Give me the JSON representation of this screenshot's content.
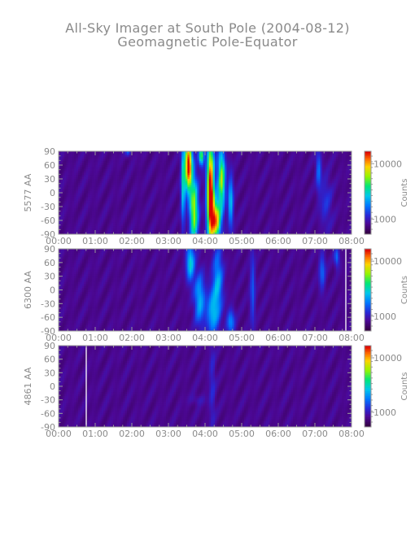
{
  "title": "All-Sky Imager at South Pole (2004-08-12)",
  "subtitle": "Geomagnetic Pole-Equator",
  "chart_data": [
    {
      "type": "heatmap",
      "ylabel": "5577 AA",
      "colorbar_label": "Counts",
      "colorbar_ticks": [
        "10000",
        "1000"
      ],
      "x_ticks": [
        "00:00",
        "01:00",
        "02:00",
        "03:00",
        "04:00",
        "05:00",
        "06:00",
        "07:00",
        "08:00"
      ],
      "y_ticks": [
        "90",
        "60",
        "30",
        "0",
        "-30",
        "-60",
        "-90"
      ],
      "xlim_hours": [
        0,
        8
      ],
      "ylim": [
        -90,
        90
      ],
      "blobs": [
        {
          "t": 3.55,
          "lat": 60,
          "wt": 0.07,
          "wl": 40,
          "amp": 0.92
        },
        {
          "t": 3.7,
          "lat": -40,
          "wt": 0.08,
          "wl": 50,
          "amp": 0.62
        },
        {
          "t": 4.15,
          "lat": 0,
          "wt": 0.07,
          "wl": 80,
          "amp": 0.97
        },
        {
          "t": 4.3,
          "lat": -60,
          "wt": 0.09,
          "wl": 30,
          "amp": 0.72
        },
        {
          "t": 4.45,
          "lat": 30,
          "wt": 0.07,
          "wl": 45,
          "amp": 0.62
        },
        {
          "t": 3.9,
          "lat": 80,
          "wt": 0.05,
          "wl": 15,
          "amp": 0.55
        },
        {
          "t": 4.7,
          "lat": -20,
          "wt": 0.05,
          "wl": 40,
          "amp": 0.35
        },
        {
          "t": 3.4,
          "lat": 20,
          "wt": 0.04,
          "wl": 60,
          "amp": 0.4
        },
        {
          "t": 7.1,
          "lat": 50,
          "wt": 0.05,
          "wl": 30,
          "amp": 0.22
        },
        {
          "t": 7.3,
          "lat": -20,
          "wt": 0.12,
          "wl": 40,
          "amp": 0.12
        },
        {
          "t": 1.9,
          "lat": 90,
          "wt": 0.05,
          "wl": 8,
          "amp": 0.2
        }
      ]
    },
    {
      "type": "heatmap",
      "ylabel": "6300 AA",
      "colorbar_label": "Counts",
      "colorbar_ticks": [
        "10000",
        "1000"
      ],
      "x_ticks": [
        "00:00",
        "01:00",
        "02:00",
        "03:00",
        "04:00",
        "05:00",
        "06:00",
        "07:00",
        "08:00"
      ],
      "y_ticks": [
        "90",
        "60",
        "30",
        "0",
        "-30",
        "-60",
        "-90"
      ],
      "xlim_hours": [
        0,
        8
      ],
      "ylim": [
        -90,
        90
      ],
      "blobs": [
        {
          "t": 3.6,
          "lat": 60,
          "wt": 0.08,
          "wl": 30,
          "amp": 0.38
        },
        {
          "t": 3.85,
          "lat": -20,
          "wt": 0.1,
          "wl": 40,
          "amp": 0.32
        },
        {
          "t": 4.2,
          "lat": -50,
          "wt": 0.12,
          "wl": 35,
          "amp": 0.3
        },
        {
          "t": 4.35,
          "lat": 20,
          "wt": 0.1,
          "wl": 50,
          "amp": 0.3
        },
        {
          "t": 4.7,
          "lat": -70,
          "wt": 0.08,
          "wl": 20,
          "amp": 0.25
        },
        {
          "t": 5.3,
          "lat": 0,
          "wt": 0.05,
          "wl": 60,
          "amp": 0.18
        },
        {
          "t": 7.2,
          "lat": 40,
          "wt": 0.06,
          "wl": 30,
          "amp": 0.2
        },
        {
          "t": 7.6,
          "lat": 70,
          "wt": 0.05,
          "wl": 15,
          "amp": 0.22
        }
      ]
    },
    {
      "type": "heatmap",
      "ylabel": "4861 AA",
      "colorbar_label": "Counts",
      "colorbar_ticks": [
        "10000",
        "1000"
      ],
      "x_ticks": [
        "00:00",
        "01:00",
        "02:00",
        "03:00",
        "04:00",
        "05:00",
        "06:00",
        "07:00",
        "08:00"
      ],
      "y_ticks": [
        "90",
        "60",
        "30",
        "0",
        "-30",
        "-60",
        "-90"
      ],
      "xlim_hours": [
        0,
        8
      ],
      "ylim": [
        -90,
        90
      ],
      "blobs": [
        {
          "t": 4.2,
          "lat": 0,
          "wt": 0.06,
          "wl": 80,
          "amp": 0.1
        },
        {
          "t": 3.8,
          "lat": -30,
          "wt": 0.15,
          "wl": 8,
          "amp": 0.06
        }
      ]
    }
  ]
}
